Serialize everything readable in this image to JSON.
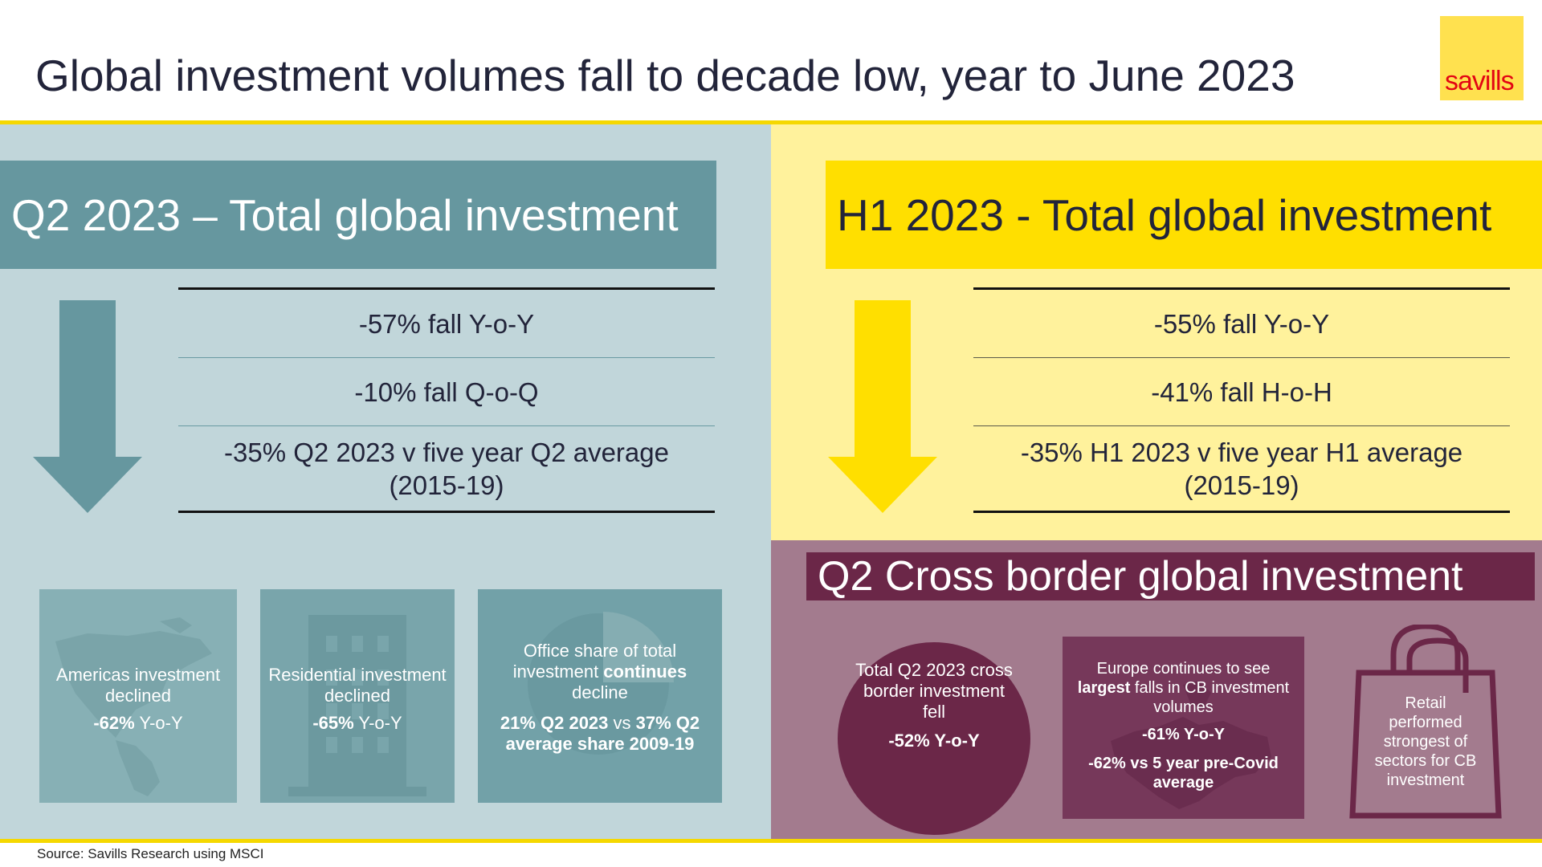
{
  "title": "Global investment volumes fall to decade low, year to June 2023",
  "logo_text": "savills",
  "colors": {
    "teal": "#66979f",
    "yellow": "#ffdf00",
    "plum": "#6b2748",
    "light_teal": "#c1d6da",
    "light_yellow": "#fff29c",
    "mauve": "#a37b8e"
  },
  "q2": {
    "banner": "Q2 2023 – Total global investment",
    "stat1": "-57% fall Y-o-Y",
    "stat2": "-10% fall Q-o-Q",
    "stat3_line1": "-35% Q2 2023 v five year Q2 average",
    "stat3_line2": "(2015-19)",
    "tiles": {
      "americas": {
        "icon": "americas-map-icon",
        "line1": "Americas investment declined",
        "pct": "-62%",
        "suffix": " Y-o-Y"
      },
      "residential": {
        "icon": "building-icon",
        "line1": "Residential investment declined",
        "pct": "-65%",
        "suffix": " Y-o-Y"
      },
      "office": {
        "icon": "pie-chart-icon",
        "line1a": "Office share of total investment ",
        "line1b": "continues",
        "line1c": " decline",
        "line2a": "21% Q2 2023",
        "line2b": " vs ",
        "line2c": "37% Q2 average share 2009-19"
      }
    }
  },
  "h1": {
    "banner": "H1 2023 - Total global investment",
    "stat1": "-55% fall Y-o-Y",
    "stat2": "-41% fall H-o-H",
    "stat3_line1": "-35% H1 2023 v five year H1 average",
    "stat3_line2": "(2015-19)"
  },
  "cb": {
    "banner": "Q2 Cross border global investment",
    "circle_text": "Total Q2 2023 cross border investment fell",
    "circle_pct": "-52% Y-o-Y",
    "europe_a": "Europe continues to see ",
    "europe_b": "largest",
    "europe_c": " falls in CB investment volumes",
    "europe_pct1": "-61% Y-o-Y",
    "europe_pct2": "-62% vs 5 year pre-Covid average",
    "europe_icon": "europe-map-icon",
    "retail_text": "Retail performed strongest of sectors for CB investment",
    "retail_icon": "shopping-bag-icon"
  },
  "source": "Source: Savills Research using MSCI"
}
